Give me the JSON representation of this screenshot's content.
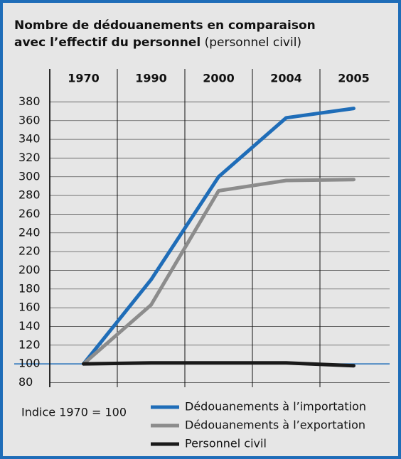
{
  "chart_data": {
    "type": "line",
    "title": [
      "Nombre de dédouanements en comparaison",
      "avec l’effectif du personnel"
    ],
    "subtitle": "(personnel civil)",
    "annotation": "Indice 1970 = 100",
    "categories": [
      "1970",
      "1990",
      "2000",
      "2004",
      "2005"
    ],
    "series": [
      {
        "name": "Dédouanements à l’importation",
        "color": "#1f6db8",
        "values": [
          100,
          190,
          300,
          363,
          373
        ]
      },
      {
        "name": "Dédouanements à l’exportation",
        "color": "#8c8c8c",
        "values": [
          100,
          163,
          285,
          296,
          297
        ]
      },
      {
        "name": "Personnel civil",
        "color": "#1a1a1a",
        "values": [
          100,
          101,
          101,
          101,
          98
        ]
      }
    ],
    "ylim": [
      75,
      394
    ],
    "yticks": [
      80,
      100,
      120,
      140,
      160,
      180,
      200,
      220,
      240,
      260,
      280,
      300,
      320,
      340,
      360,
      380
    ],
    "highlight_tick": 100,
    "highlight_color": "#1f6db8",
    "grid": true
  }
}
